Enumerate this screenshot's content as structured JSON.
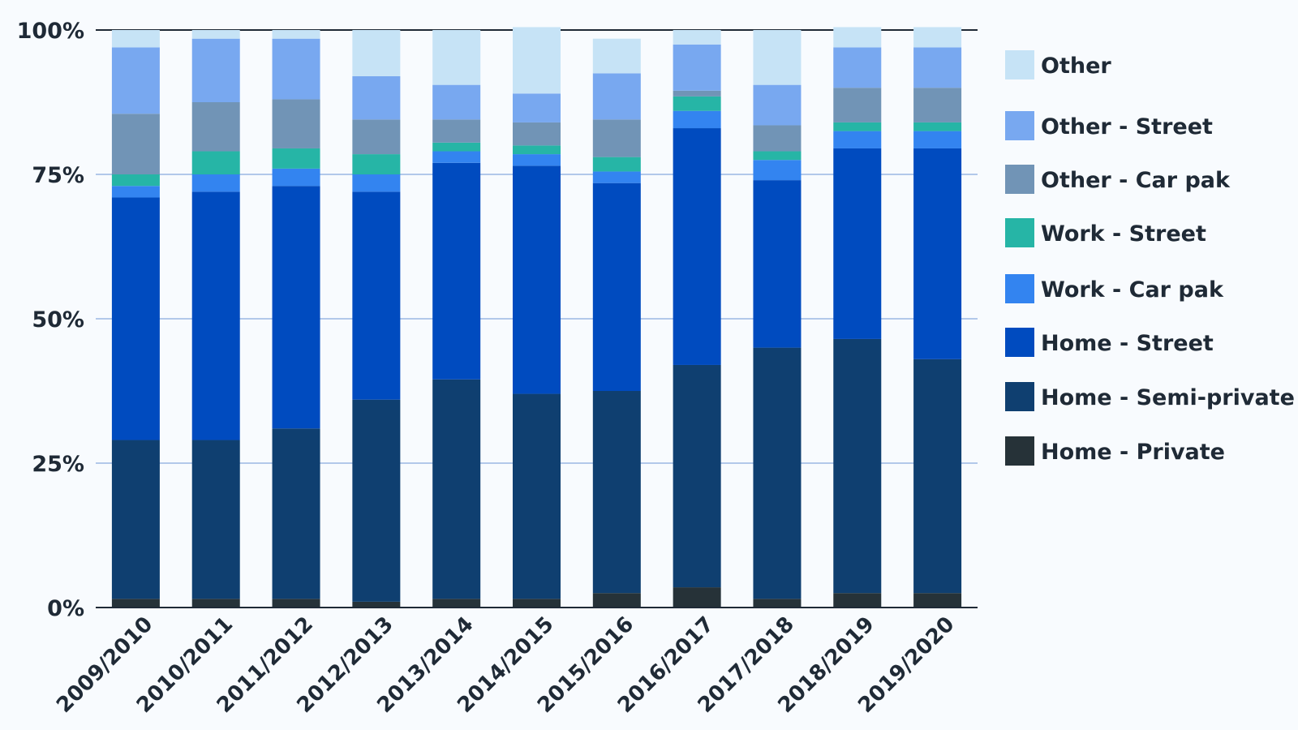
{
  "chart_data": {
    "type": "bar",
    "stacked": true,
    "categories": [
      "2009/2010",
      "2010/2011",
      "2011/2012",
      "2012/2013",
      "2013/2014",
      "2014/2015",
      "2015/2016",
      "2016/2017",
      "2017/2018",
      "2018/2019",
      "2019/2020"
    ],
    "series": [
      {
        "name": "Home - Private",
        "color": "#263238",
        "values": [
          1.5,
          1.5,
          1.5,
          1,
          1.5,
          1.5,
          2.5,
          3.5,
          1.5,
          2.5,
          2.5
        ]
      },
      {
        "name": "Home - Semi-private",
        "color": "#0f3f70",
        "values": [
          27.5,
          27.5,
          29.5,
          35,
          38,
          35.5,
          35,
          38.5,
          43.5,
          44,
          40.5
        ]
      },
      {
        "name": "Home - Street",
        "color": "#004bbf",
        "values": [
          42,
          43,
          42,
          36,
          37.5,
          39.5,
          36,
          41,
          29,
          33,
          36.5
        ]
      },
      {
        "name": "Work - Car pak",
        "color": "#3384f0",
        "values": [
          2,
          3,
          3,
          3,
          2,
          2,
          2,
          3,
          3.5,
          3,
          3
        ]
      },
      {
        "name": "Work - Street",
        "color": "#26b5a6",
        "values": [
          2,
          4,
          3.5,
          3.5,
          1.5,
          1.5,
          2.5,
          2.5,
          1.5,
          1.5,
          1.5
        ]
      },
      {
        "name": "Other - Car pak",
        "color": "#7194b6",
        "values": [
          10.5,
          8.5,
          8.5,
          6,
          4,
          4,
          6.5,
          1,
          4.5,
          6,
          6
        ]
      },
      {
        "name": "Other - Street",
        "color": "#78a8f0",
        "values": [
          11.5,
          11,
          10.5,
          7.5,
          6,
          5,
          8,
          8,
          7,
          7,
          7
        ]
      },
      {
        "name": "Other",
        "color": "#c6e3f6",
        "values": [
          3,
          1.5,
          1.5,
          8,
          9.5,
          11.5,
          6,
          2.5,
          9.5,
          3.5,
          3.5
        ]
      }
    ],
    "legend_order": [
      "Other",
      "Other - Street",
      "Other - Car pak",
      "Work - Street",
      "Work - Car pak",
      "Home - Street",
      "Home - Semi-private",
      "Home - Private"
    ],
    "ylim": [
      0,
      100
    ],
    "yticks": [
      "0%",
      "25%",
      "50%",
      "75%",
      "100%"
    ],
    "ytick_values": [
      0,
      25,
      50,
      75,
      100
    ],
    "xlabel": "",
    "ylabel": "",
    "title": "",
    "grid": true,
    "legend_position": "right"
  }
}
